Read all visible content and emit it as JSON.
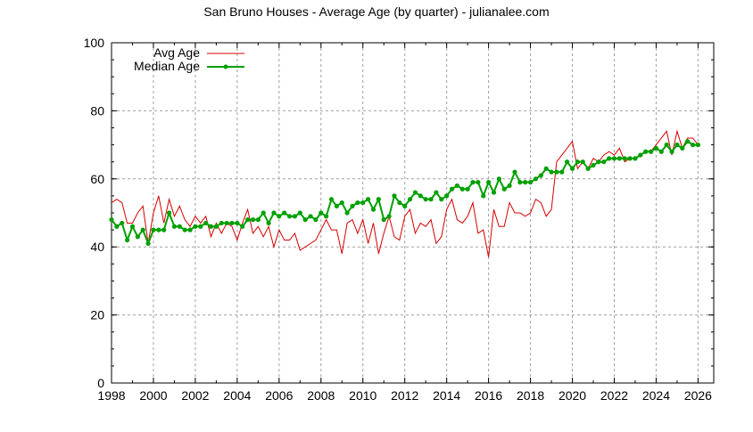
{
  "chart_data": {
    "type": "line",
    "title": "San Bruno Houses - Average Age (by quarter) - julianalee.com",
    "xlabel": "",
    "ylabel": "",
    "xlim": [
      1998,
      2026.75
    ],
    "ylim": [
      0,
      100
    ],
    "grid": true,
    "legend_placement": "top-left",
    "x_ticks": [
      "1998",
      "2000",
      "2002",
      "2004",
      "2006",
      "2008",
      "2010",
      "2012",
      "2014",
      "2016",
      "2018",
      "2020",
      "2022",
      "2024",
      "2026"
    ],
    "y_ticks": [
      "0",
      "20",
      "40",
      "60",
      "80",
      "100"
    ],
    "x_start": 1998,
    "x_step": 0.25,
    "series": [
      {
        "name": "Avg Age",
        "color": "#d40000",
        "points": false,
        "values": [
          53,
          54,
          53,
          47,
          47,
          50,
          52,
          41,
          50,
          55,
          47,
          54,
          49,
          52,
          48,
          46,
          49,
          47,
          49,
          43,
          47,
          44,
          47,
          46,
          42,
          47,
          51,
          44,
          46,
          43,
          46,
          40,
          45,
          42,
          42,
          44,
          39,
          40,
          41,
          42,
          45,
          48,
          45,
          45,
          38,
          47,
          48,
          44,
          48,
          41,
          47,
          38,
          44,
          49,
          43,
          42,
          49,
          51,
          44,
          47,
          46,
          48,
          41,
          43,
          51,
          54,
          48,
          47,
          49,
          53,
          44,
          45,
          37,
          51,
          46,
          46,
          53,
          50,
          50,
          49,
          50,
          54,
          53,
          49,
          51,
          65,
          67,
          69,
          71,
          63,
          65,
          63,
          66,
          65,
          67,
          68,
          67,
          69,
          65,
          66,
          66,
          67,
          68,
          68,
          70,
          72,
          74,
          67,
          74,
          69,
          72,
          72,
          70
        ]
      },
      {
        "name": "Median Age",
        "color": "#00a000",
        "points": true,
        "values": [
          48,
          46,
          47,
          42,
          46,
          43,
          45,
          41,
          45,
          45,
          45,
          50,
          46,
          46,
          45,
          45,
          46,
          46,
          47,
          46,
          46,
          47,
          47,
          47,
          47,
          46,
          48,
          48,
          48,
          50,
          47,
          50,
          49,
          50,
          49,
          49,
          50,
          48,
          49,
          48,
          50,
          49,
          54,
          52,
          53,
          50,
          52,
          53,
          53,
          54,
          51,
          54,
          48,
          49,
          55,
          53,
          52,
          54,
          56,
          55,
          54,
          54,
          56,
          54,
          55,
          57,
          58,
          57,
          57,
          59,
          59,
          55,
          59,
          56,
          60,
          57,
          58,
          62,
          59,
          59,
          59,
          60,
          61,
          63,
          62,
          62,
          62,
          65,
          63,
          65,
          65,
          63,
          64,
          65,
          65,
          66,
          66,
          66,
          66,
          66,
          66,
          67,
          68,
          68,
          69,
          68,
          70,
          68,
          70,
          69,
          71,
          70,
          70
        ]
      }
    ]
  }
}
